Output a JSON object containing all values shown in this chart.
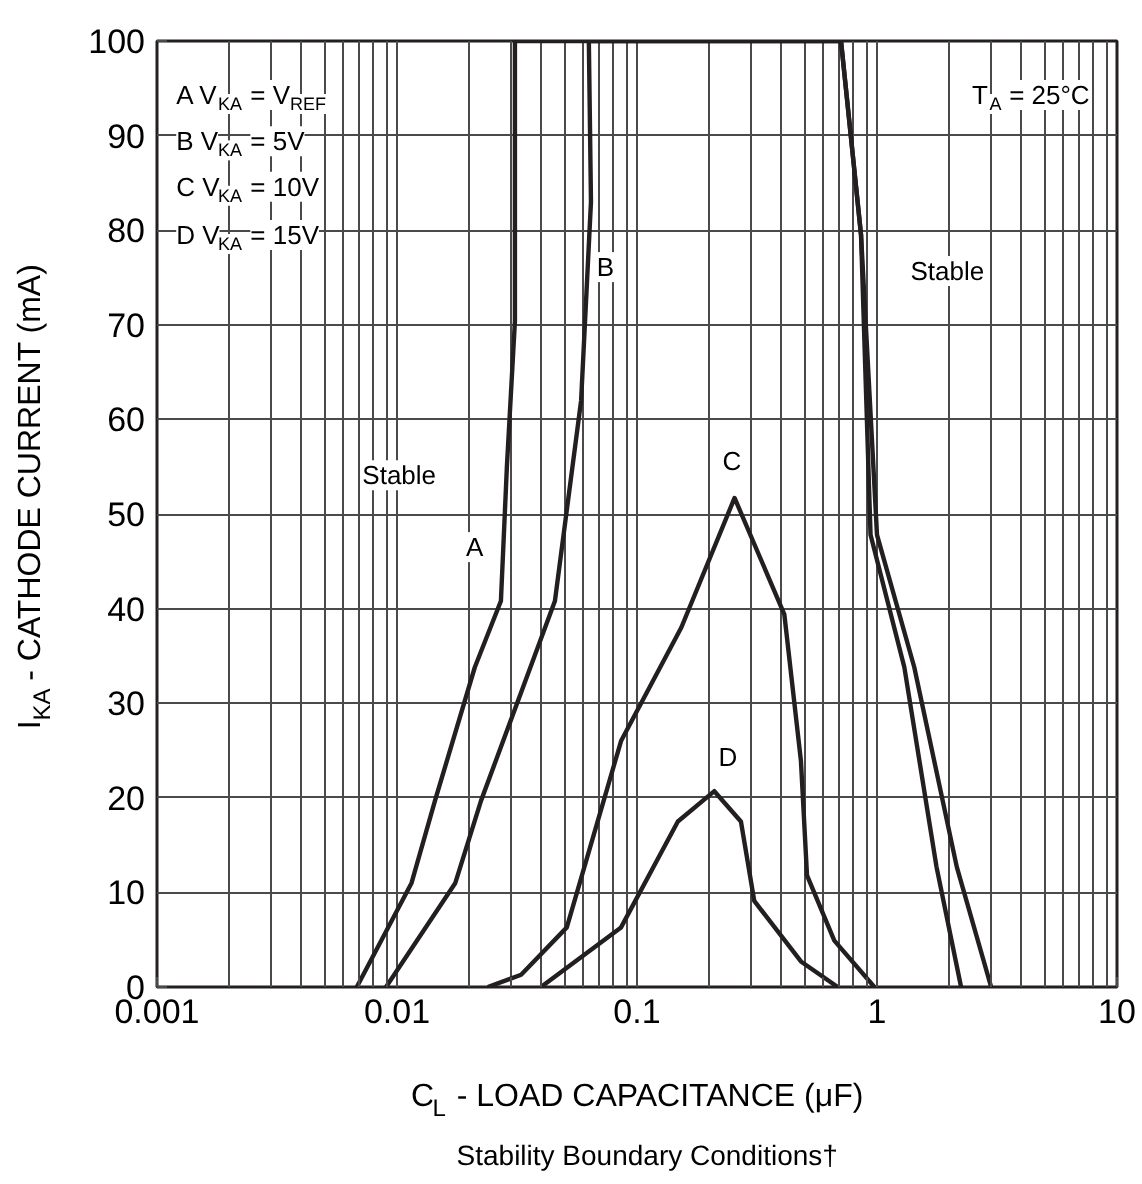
{
  "chart_data": {
    "type": "line",
    "title": "Stability Boundary Conditions†",
    "xlabel": "C$_{L}$ - LOAD CAPACITANCE (μF)",
    "ylabel": "I$_{KA}$ - CATHODE CURRENT (mA)",
    "log": "x",
    "xlim": [
      0.001,
      10
    ],
    "ylim": [
      0,
      100
    ],
    "xticks": [
      {
        "value": 0.001,
        "label": "0.001"
      },
      {
        "value": 0.002,
        "label": null
      },
      {
        "value": 0.003,
        "label": null
      },
      {
        "value": 0.004,
        "label": null
      },
      {
        "value": 0.005,
        "label": null
      },
      {
        "value": 0.006,
        "label": null
      },
      {
        "value": 0.007,
        "label": null
      },
      {
        "value": 0.008,
        "label": null
      },
      {
        "value": 0.009,
        "label": null
      },
      {
        "value": 0.01,
        "label": "0.01"
      },
      {
        "value": 0.02,
        "label": null
      },
      {
        "value": 0.03,
        "label": null
      },
      {
        "value": 0.04,
        "label": null
      },
      {
        "value": 0.05,
        "label": null
      },
      {
        "value": 0.06,
        "label": null
      },
      {
        "value": 0.07,
        "label": null
      },
      {
        "value": 0.08,
        "label": null
      },
      {
        "value": 0.09,
        "label": null
      },
      {
        "value": 0.1,
        "label": "0.1"
      },
      {
        "value": 0.2,
        "label": null
      },
      {
        "value": 0.3,
        "label": null
      },
      {
        "value": 0.4,
        "label": null
      },
      {
        "value": 0.5,
        "label": null
      },
      {
        "value": 0.6,
        "label": null
      },
      {
        "value": 0.7,
        "label": null
      },
      {
        "value": 0.8,
        "label": null
      },
      {
        "value": 0.9,
        "label": null
      },
      {
        "value": 1,
        "label": "1"
      },
      {
        "value": 2,
        "label": null
      },
      {
        "value": 3,
        "label": null
      },
      {
        "value": 4,
        "label": null
      },
      {
        "value": 5,
        "label": null
      },
      {
        "value": 6,
        "label": null
      },
      {
        "value": 7,
        "label": null
      },
      {
        "value": 8,
        "label": null
      },
      {
        "value": 9,
        "label": null
      },
      {
        "value": 10,
        "label": "10"
      }
    ],
    "yticks": [
      0,
      10,
      20,
      30,
      40,
      50,
      60,
      70,
      80,
      90,
      100
    ],
    "grid": true,
    "marker": "none",
    "line_style": "solid",
    "series": [
      {
        "color": "#231f20",
        "x": [
          0.0068,
          0.0115,
          0.0144,
          0.0211,
          0.0271,
          0.0287,
          0.031,
          0.031,
          0.708,
          0.858,
          0.94,
          1.3,
          1.77,
          2.24
        ],
        "values": [
          0,
          11,
          19.7,
          33.8,
          40.8,
          55,
          70.4,
          100,
          100,
          79.5,
          47.8,
          33.8,
          12.7,
          0
        ]
      },
      {
        "color": "#231f20",
        "x": [
          0.009,
          0.0175,
          0.0224,
          0.0455,
          0.0585,
          0.0643,
          0.063,
          0.708,
          0.858,
          1.0,
          1.43,
          2.15,
          2.99
        ],
        "values": [
          0,
          11,
          19.7,
          40.8,
          62,
          83,
          100,
          100,
          79.5,
          47.8,
          33.8,
          12.7,
          0
        ]
      },
      {
        "color": "#231f20",
        "x": [
          0.0239,
          0.0329,
          0.051,
          0.0858,
          0.153,
          0.255,
          0.411,
          0.482,
          0.511,
          0.664,
          0.975
        ],
        "values": [
          0,
          1.3,
          6.3,
          26,
          38,
          51.7,
          39.4,
          23.9,
          11.8,
          4.9,
          0
        ]
      },
      {
        "color": "#231f20",
        "x": [
          0.0398,
          0.0858,
          0.148,
          0.21,
          0.271,
          0.308,
          0.482,
          0.686
        ],
        "values": [
          0,
          6.3,
          17.5,
          20.7,
          17.5,
          9.1,
          2.7,
          0
        ]
      }
    ],
    "annotations": [
      "A V$_{KA}$ = V$_{REF}$",
      "B V$_{KA}$ = 5V",
      "C V$_{KA}$ = 10V",
      "D V$_{KA}$ = 15V",
      "T$_{A}$ = 25°C",
      "A",
      "B",
      "C",
      "D",
      "Stable",
      "Stable"
    ]
  }
}
